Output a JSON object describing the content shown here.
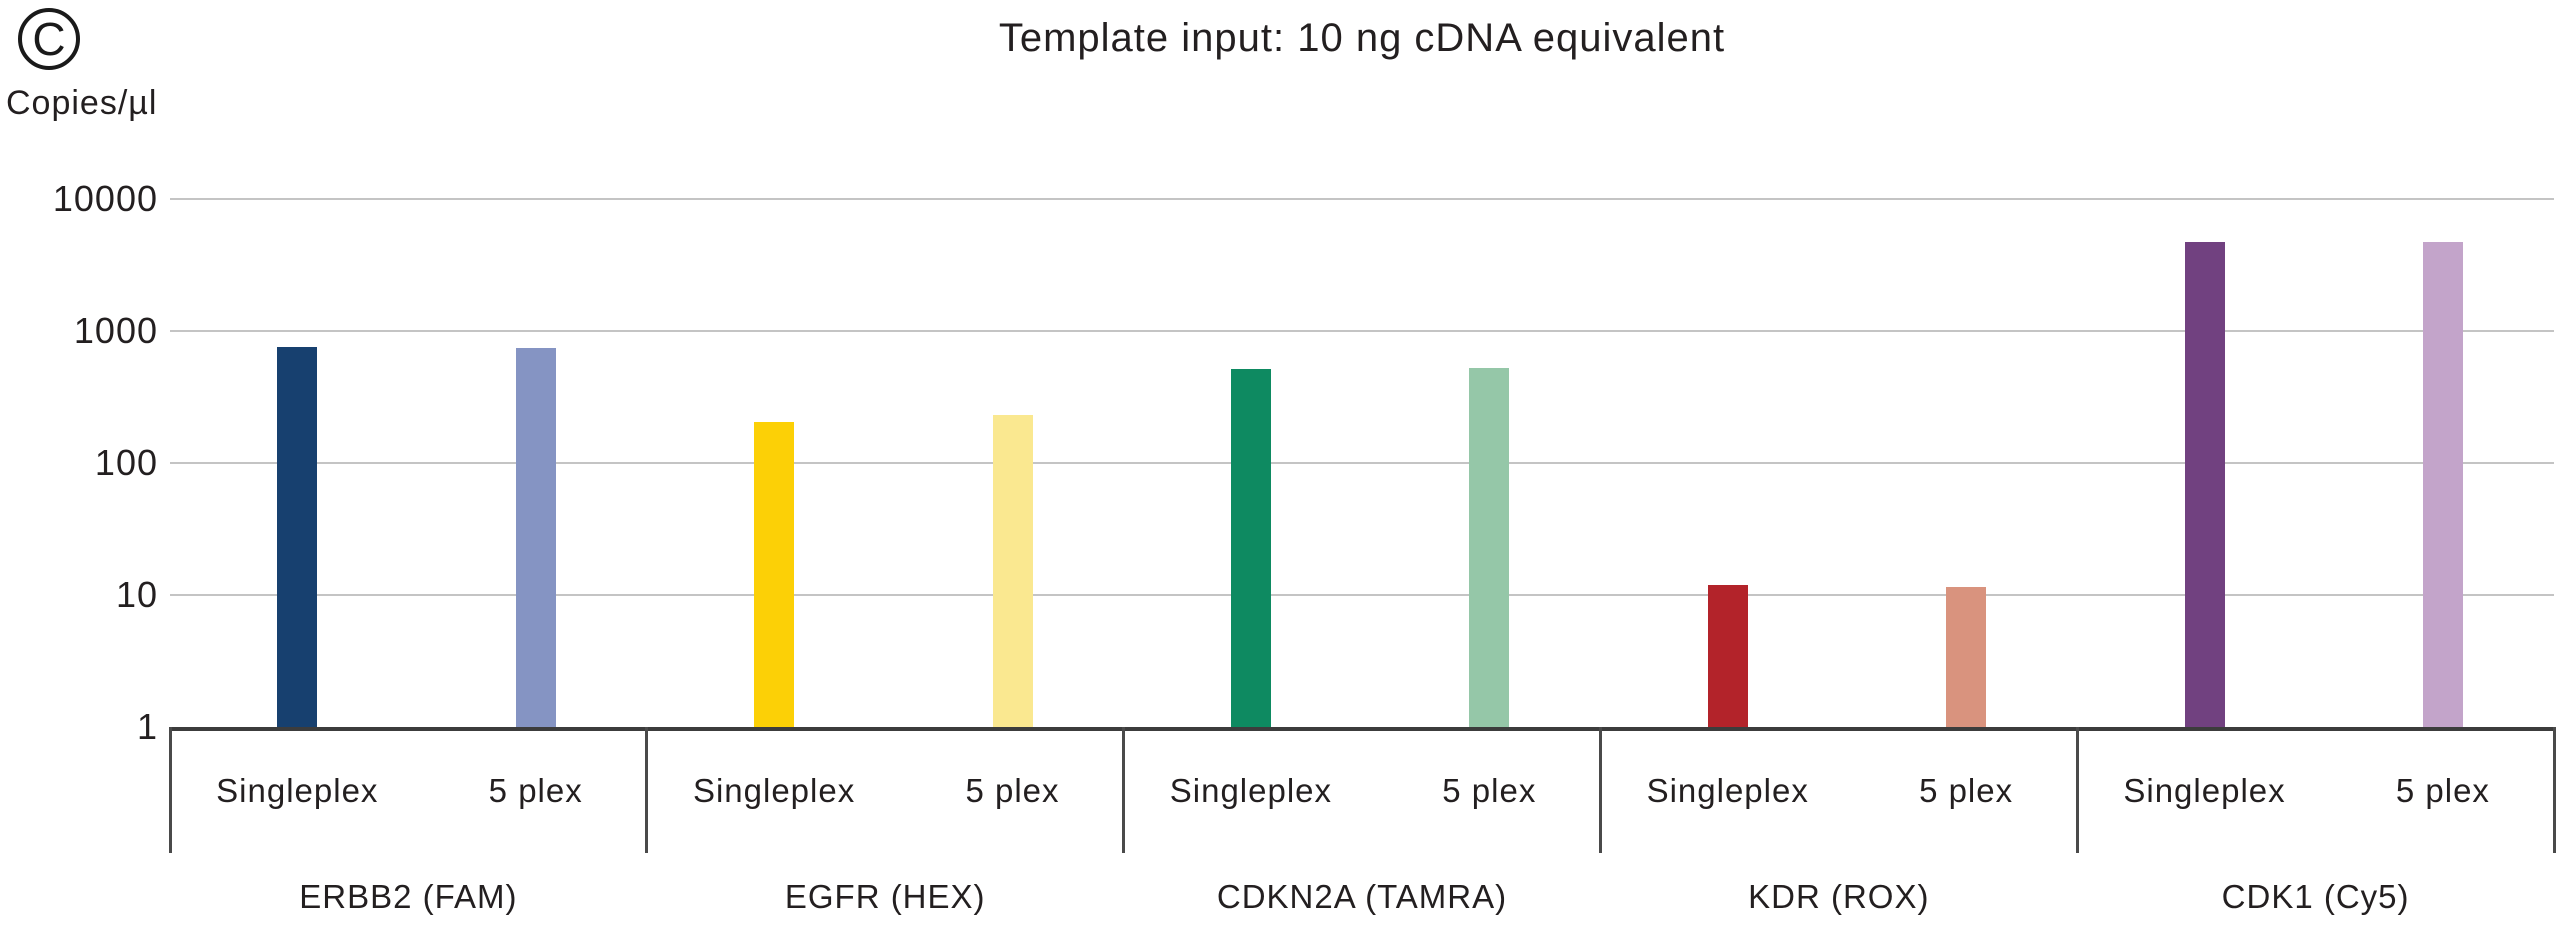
{
  "panel_label": "C",
  "title": "Template input: 10 ng cDNA equivalent",
  "y_axis_label": "Copies/µl",
  "chart_data": {
    "type": "bar",
    "y_scale": "log",
    "ylim": [
      1,
      10000
    ],
    "y_ticks": [
      10000,
      1000,
      100,
      10,
      1
    ],
    "title": "Template input: 10 ng cDNA equivalent",
    "y_axis_label": "Copies/µl",
    "legend": "none",
    "grid": "horizontal",
    "sub_categories": [
      "Singleplex",
      "5 plex"
    ],
    "categories": [
      "ERBB2 (FAM)",
      "EGFR (HEX)",
      "CDKN2A (TAMRA)",
      "KDR (ROX)",
      "CDK1 (Cy5)"
    ],
    "groups": [
      {
        "gene": "ERBB2 (FAM)",
        "bars": [
          {
            "label": "Singleplex",
            "value": 750,
            "color": "#17406F"
          },
          {
            "label": "5 plex",
            "value": 740,
            "color": "#8594C3"
          }
        ]
      },
      {
        "gene": "EGFR (HEX)",
        "bars": [
          {
            "label": "Singleplex",
            "value": 205,
            "color": "#FCD006"
          },
          {
            "label": "5 plex",
            "value": 230,
            "color": "#FAE890"
          }
        ]
      },
      {
        "gene": "CDKN2A (TAMRA)",
        "bars": [
          {
            "label": "Singleplex",
            "value": 515,
            "color": "#0E8A61"
          },
          {
            "label": "5 plex",
            "value": 520,
            "color": "#95C7A8"
          }
        ]
      },
      {
        "gene": "KDR (ROX)",
        "bars": [
          {
            "label": "Singleplex",
            "value": 12,
            "color": "#B3232A"
          },
          {
            "label": "5 plex",
            "value": 11.5,
            "color": "#D9937E"
          }
        ]
      },
      {
        "gene": "CDK1 (Cy5)",
        "bars": [
          {
            "label": "Singleplex",
            "value": 4700,
            "color": "#714180"
          },
          {
            "label": "5 plex",
            "value": 4700,
            "color": "#C3A4CA"
          }
        ]
      }
    ],
    "colors": {
      "gridline": "#C4C4C4",
      "axis": "#3C3C3C",
      "text": "#231F20"
    }
  }
}
